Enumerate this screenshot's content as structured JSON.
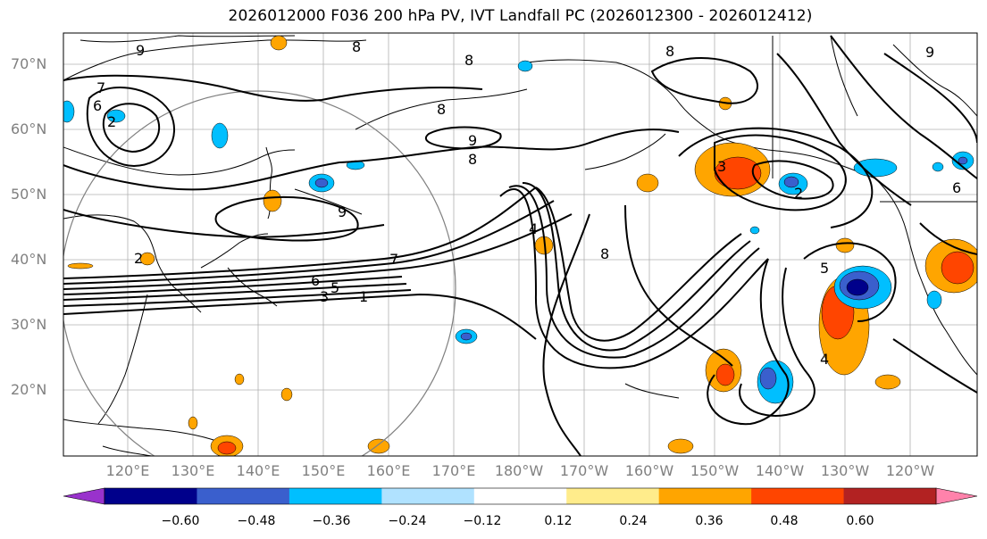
{
  "title": "2026012000 F036 200 hPa PV, IVT Landfall PC (2026012300 - 2026012412)",
  "lat_labels": [
    "70°N",
    "60°N",
    "50°N",
    "40°N",
    "30°N",
    "20°N"
  ],
  "lon_labels": [
    "120°E",
    "130°E",
    "140°E",
    "150°E",
    "160°E",
    "170°E",
    "180°W",
    "170°W",
    "160°W",
    "150°W",
    "140°W",
    "130°W",
    "120°W"
  ],
  "colorbar": {
    "ticks": [
      "−0.60",
      "−0.48",
      "−0.36",
      "−0.24",
      "−0.12",
      "0.12",
      "0.24",
      "0.36",
      "0.48",
      "0.60"
    ],
    "colors": [
      "#9932CC",
      "#00008B",
      "#3A5FCD",
      "#00BFFF",
      "#B0E2FF",
      "#FFFFFF",
      "#FFEC8B",
      "#FFA500",
      "#FF4500",
      "#B22222",
      "#FF82AB"
    ]
  },
  "contour_labels": [
    "9",
    "8",
    "8",
    "8",
    "7",
    "6",
    "9",
    "9",
    "8",
    "8",
    "7",
    "6",
    "5",
    "3",
    "1",
    "2",
    "2",
    "4",
    "8",
    "3",
    "5",
    "4",
    "6",
    "2",
    "9"
  ],
  "feature_colors": {
    "positive_fill": "#FFA500",
    "positive_core": "#FF4500",
    "negative_fill": "#00BFFF",
    "negative_core": "#3A5FCD",
    "negative_center": "#00008B",
    "circle": "#808080",
    "contour": "#000000"
  }
}
